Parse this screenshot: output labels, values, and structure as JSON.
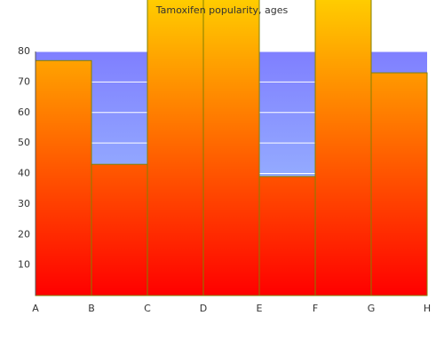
{
  "chart_data": {
    "type": "step",
    "title": "Tamoxifen popularity, ages",
    "categories": [
      "A",
      "B",
      "C",
      "D",
      "E",
      "F",
      "G",
      "H"
    ],
    "values": [
      77,
      43,
      100,
      100,
      39,
      100,
      73,
      null
    ],
    "ylim": [
      0,
      80
    ],
    "yticks": [
      10,
      20,
      30,
      40,
      50,
      60,
      70,
      80
    ],
    "grid": true,
    "color": "#808000"
  }
}
